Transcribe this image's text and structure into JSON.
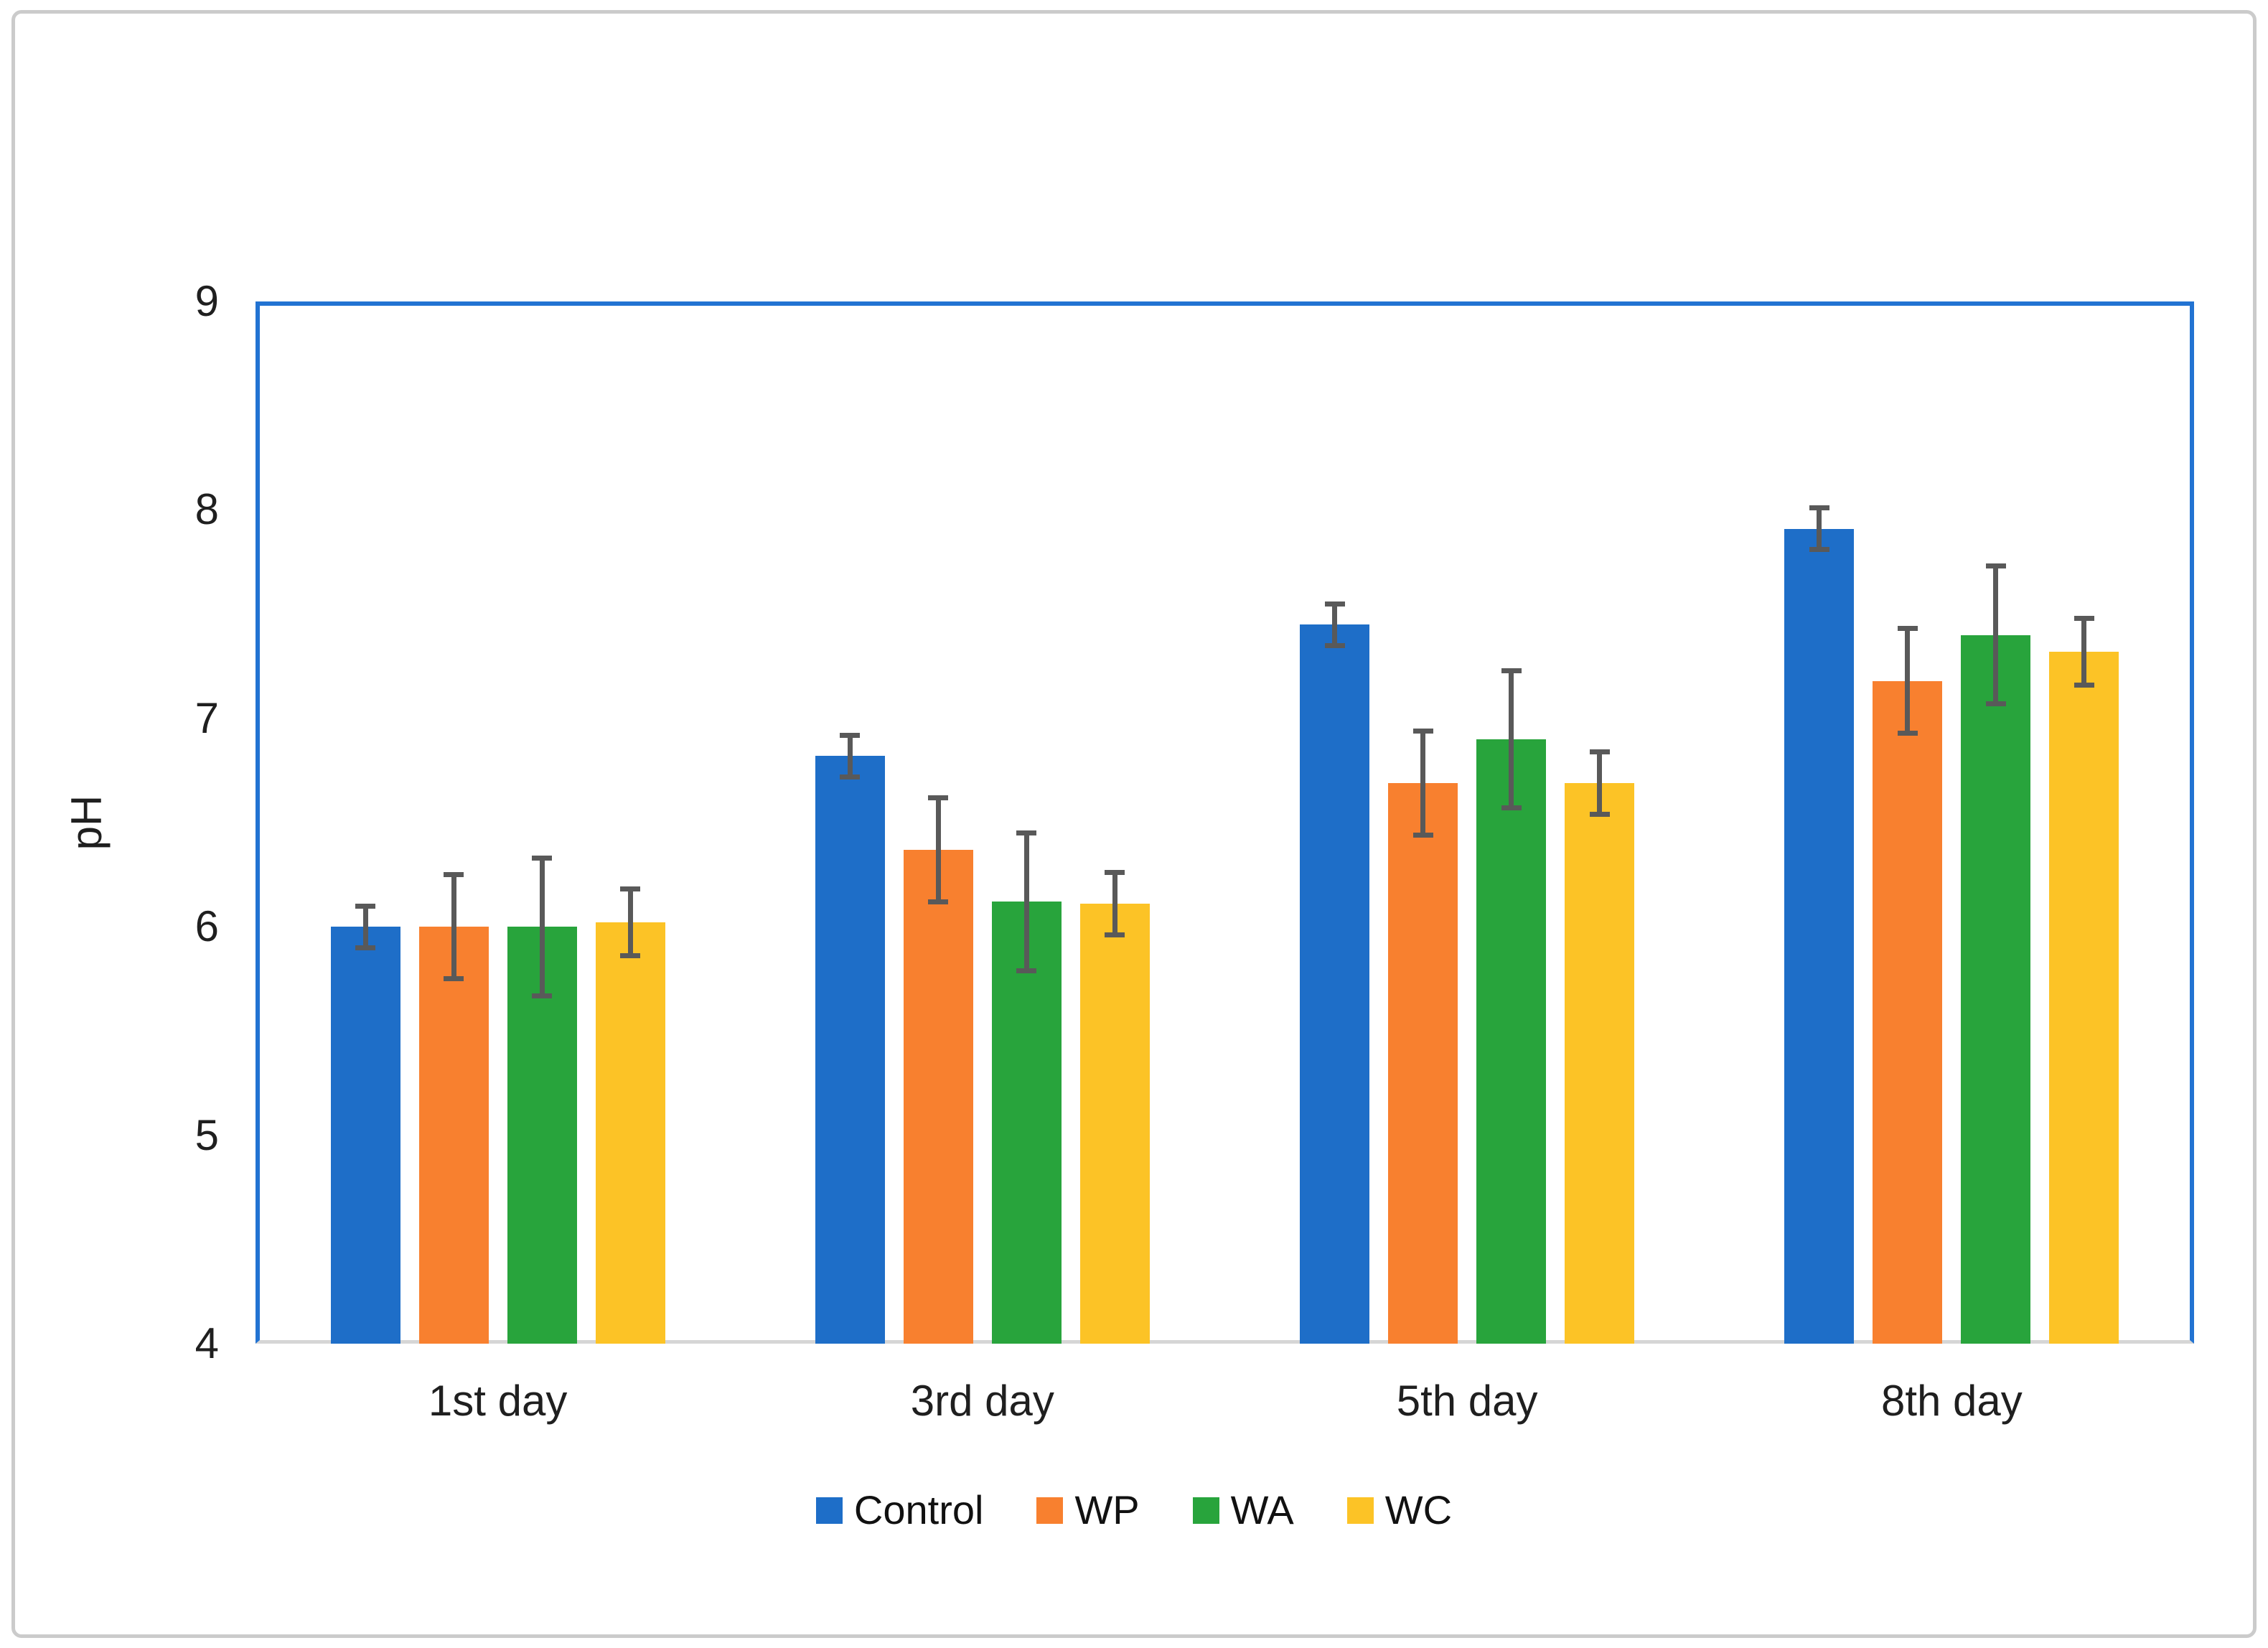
{
  "figure": {
    "y_axis_title": "pH"
  },
  "chart_data": {
    "type": "bar",
    "title": "",
    "xlabel": "",
    "ylabel": "pH",
    "categories": [
      "1st day",
      "3rd day",
      "5th day",
      "8th day"
    ],
    "series": [
      {
        "name": "Control",
        "color": "#1e6ec8",
        "values": [
          6.0,
          6.82,
          7.45,
          7.91
        ],
        "errors": [
          0.1,
          0.1,
          0.1,
          0.1
        ]
      },
      {
        "name": "WP",
        "color": "#f8802f",
        "values": [
          6.0,
          6.37,
          6.69,
          7.18
        ],
        "errors": [
          0.25,
          0.25,
          0.25,
          0.25
        ]
      },
      {
        "name": "WA",
        "color": "#28a43c",
        "values": [
          6.0,
          6.12,
          6.9,
          7.4
        ],
        "errors": [
          0.33,
          0.33,
          0.33,
          0.33
        ]
      },
      {
        "name": "WC",
        "color": "#fcc326",
        "values": [
          6.02,
          6.11,
          6.69,
          7.32
        ],
        "errors": [
          0.16,
          0.15,
          0.15,
          0.16
        ]
      }
    ],
    "ylim": [
      4,
      9
    ],
    "y_ticks": [
      9,
      8,
      7,
      6,
      5,
      4
    ],
    "grid": false,
    "legend_position": "bottom-center",
    "error_bar_color": "#595959",
    "plot_frame_color": "#2273d2",
    "baseline_color": "#d6d6d6"
  }
}
